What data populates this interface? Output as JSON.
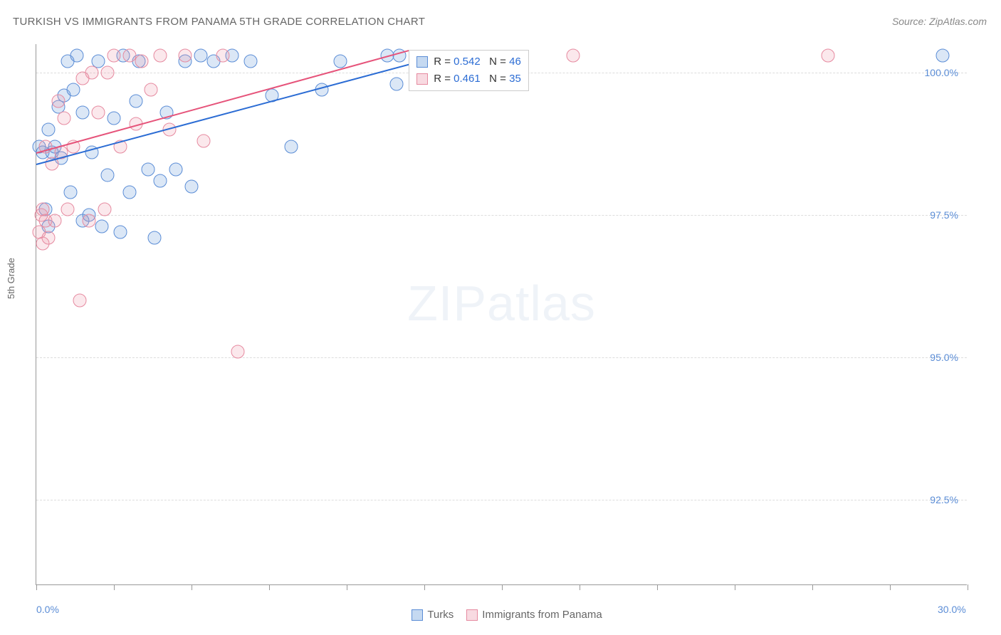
{
  "title": "TURKISH VS IMMIGRANTS FROM PANAMA 5TH GRADE CORRELATION CHART",
  "source": "Source: ZipAtlas.com",
  "ylabel": "5th Grade",
  "watermark_zip": "ZIP",
  "watermark_atlas": "atlas",
  "chart": {
    "type": "scatter",
    "background_color": "#ffffff",
    "grid_color": "#dddddd",
    "axis_color": "#999999",
    "xlim": [
      0,
      30
    ],
    "ylim": [
      91,
      100.5
    ],
    "ytick_values": [
      92.5,
      95.0,
      97.5,
      100.0
    ],
    "ytick_labels": [
      "92.5%",
      "95.0%",
      "97.5%",
      "100.0%"
    ],
    "xtick_values": [
      0,
      2.5,
      5,
      7.5,
      10,
      12.5,
      15,
      17.5,
      20,
      22.5,
      25,
      27.5,
      30
    ],
    "xtick_labels": {
      "0": "0.0%",
      "30": "30.0%"
    },
    "marker_radius": 9.5,
    "series": [
      {
        "name": "Turks",
        "color_fill": "rgba(110,160,220,0.25)",
        "color_stroke": "#5b8dd6",
        "class": "blue",
        "R": "0.542",
        "N": "46",
        "trend": {
          "x1": 0,
          "y1": 98.4,
          "x2": 13,
          "y2": 100.3,
          "color": "#2b6cd4"
        },
        "points": [
          [
            0.1,
            98.7
          ],
          [
            0.2,
            98.6
          ],
          [
            0.3,
            97.6
          ],
          [
            0.4,
            99.0
          ],
          [
            0.4,
            97.3
          ],
          [
            0.5,
            98.6
          ],
          [
            0.6,
            98.7
          ],
          [
            0.7,
            99.4
          ],
          [
            0.8,
            98.5
          ],
          [
            0.9,
            99.6
          ],
          [
            1.0,
            100.2
          ],
          [
            1.1,
            97.9
          ],
          [
            1.2,
            99.7
          ],
          [
            1.3,
            100.3
          ],
          [
            1.5,
            99.3
          ],
          [
            1.5,
            97.4
          ],
          [
            1.7,
            97.5
          ],
          [
            1.8,
            98.6
          ],
          [
            2.0,
            100.2
          ],
          [
            2.1,
            97.3
          ],
          [
            2.3,
            98.2
          ],
          [
            2.5,
            99.2
          ],
          [
            2.7,
            97.2
          ],
          [
            2.8,
            100.3
          ],
          [
            3.0,
            97.9
          ],
          [
            3.2,
            99.5
          ],
          [
            3.3,
            100.2
          ],
          [
            3.6,
            98.3
          ],
          [
            3.8,
            97.1
          ],
          [
            4.0,
            98.1
          ],
          [
            4.2,
            99.3
          ],
          [
            4.5,
            98.3
          ],
          [
            4.8,
            100.2
          ],
          [
            5.0,
            98.0
          ],
          [
            5.3,
            100.3
          ],
          [
            5.7,
            100.2
          ],
          [
            6.3,
            100.3
          ],
          [
            6.9,
            100.2
          ],
          [
            7.6,
            99.6
          ],
          [
            8.2,
            98.7
          ],
          [
            9.2,
            99.7
          ],
          [
            9.8,
            100.2
          ],
          [
            11.3,
            100.3
          ],
          [
            11.6,
            99.8
          ],
          [
            11.7,
            100.3
          ],
          [
            29.2,
            100.3
          ]
        ]
      },
      {
        "name": "Immigrants from Panama",
        "color_fill": "rgba(235,150,170,0.22)",
        "color_stroke": "#e68aa0",
        "class": "pink",
        "R": "0.461",
        "N": "35",
        "trend": {
          "x1": 0,
          "y1": 98.6,
          "x2": 12,
          "y2": 100.4,
          "color": "#e6537a"
        },
        "points": [
          [
            0.1,
            97.2
          ],
          [
            0.15,
            97.5
          ],
          [
            0.2,
            97.6
          ],
          [
            0.2,
            97.0
          ],
          [
            0.3,
            98.7
          ],
          [
            0.3,
            97.4
          ],
          [
            0.4,
            97.1
          ],
          [
            0.5,
            98.4
          ],
          [
            0.6,
            97.4
          ],
          [
            0.7,
            99.5
          ],
          [
            0.8,
            98.6
          ],
          [
            0.9,
            99.2
          ],
          [
            1.0,
            97.6
          ],
          [
            1.2,
            98.7
          ],
          [
            1.4,
            96.0
          ],
          [
            1.5,
            99.9
          ],
          [
            1.7,
            97.4
          ],
          [
            1.8,
            100.0
          ],
          [
            2.0,
            99.3
          ],
          [
            2.2,
            97.6
          ],
          [
            2.3,
            100.0
          ],
          [
            2.5,
            100.3
          ],
          [
            2.7,
            98.7
          ],
          [
            3.0,
            100.3
          ],
          [
            3.2,
            99.1
          ],
          [
            3.4,
            100.2
          ],
          [
            3.7,
            99.7
          ],
          [
            4.0,
            100.3
          ],
          [
            4.3,
            99.0
          ],
          [
            4.8,
            100.3
          ],
          [
            5.4,
            98.8
          ],
          [
            6.0,
            100.3
          ],
          [
            6.5,
            95.1
          ],
          [
            17.3,
            100.3
          ],
          [
            25.5,
            100.3
          ]
        ]
      }
    ]
  },
  "stat_box": {
    "rows": [
      {
        "swatch": "blue",
        "r_label": "R =",
        "r_val": "0.542",
        "n_label": "N =",
        "n_val": "46"
      },
      {
        "swatch": "pink",
        "r_label": "R =",
        "r_val": "0.461",
        "n_label": "N =",
        "n_val": "35"
      }
    ]
  },
  "bottom_legend": [
    {
      "swatch": "blue",
      "label": "Turks"
    },
    {
      "swatch": "pink",
      "label": "Immigrants from Panama"
    }
  ]
}
